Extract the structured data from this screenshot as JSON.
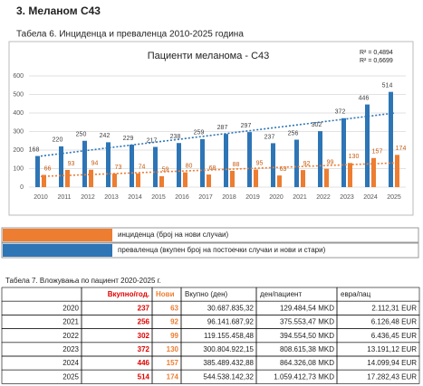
{
  "heading": "3. Меланом С43",
  "table6_caption": "Табела 6. Инциденца и преваленца 2010-2025 година",
  "chart_data": {
    "type": "bar",
    "title": "Пациенти меланома - С43",
    "categories": [
      "2010",
      "2011",
      "2012",
      "2013",
      "2014",
      "2015",
      "2016",
      "2017",
      "2018",
      "2019",
      "2020",
      "2021",
      "2022",
      "2023",
      "2024",
      "2025"
    ],
    "series": [
      {
        "name": "инциденца (број на нови случаи)",
        "color": "#ed7d31",
        "label_color": "#c55a11",
        "values": [
          66,
          93,
          94,
          73,
          74,
          59,
          80,
          68,
          88,
          95,
          63,
          92,
          99,
          130,
          157,
          174
        ]
      },
      {
        "name": "преваленца (вкупен број на постоечки случаи и нови и стари)",
        "color": "#2e75b6",
        "label_color": "#404040",
        "values": [
          168,
          220,
          250,
          242,
          229,
          217,
          238,
          259,
          287,
          297,
          237,
          256,
          302,
          372,
          446,
          514
        ]
      }
    ],
    "ylim": [
      0,
      600
    ],
    "yticks": [
      0,
      100,
      200,
      300,
      400,
      500,
      600
    ],
    "grid": true,
    "trendline": true,
    "annotations": [
      "R² = 0,4894",
      "R² = 0,6699"
    ]
  },
  "table7_caption": "Табела 7. Вложувања по пациент 2020-2025 г.",
  "table": {
    "header": [
      "",
      "Вкупно/год.",
      "Нови",
      "Вкупно (ден)",
      "ден/пациент",
      "евра/пац"
    ],
    "rows": [
      [
        "2020",
        "237",
        "63",
        "30.687.835,32",
        "129.484,54 MKD",
        "2.112,31 EUR"
      ],
      [
        "2021",
        "256",
        "92",
        "96.141.687,92",
        "375.553,47 MKD",
        "6.126,48 EUR"
      ],
      [
        "2022",
        "302",
        "99",
        "119.155.458,48",
        "394.554,50 MKD",
        "6.436,45 EUR"
      ],
      [
        "2023",
        "372",
        "130",
        "300.804.922,15",
        "808.615,38 MKD",
        "13.191,12 EUR"
      ],
      [
        "2024",
        "446",
        "157",
        "385.489.432,88",
        "864.326,08 MKD",
        "14.099,94 EUR"
      ],
      [
        "2025",
        "514",
        "174",
        "544.538.142,32",
        "1.059.412,73 MKD",
        "17.282,43 EUR"
      ]
    ]
  }
}
